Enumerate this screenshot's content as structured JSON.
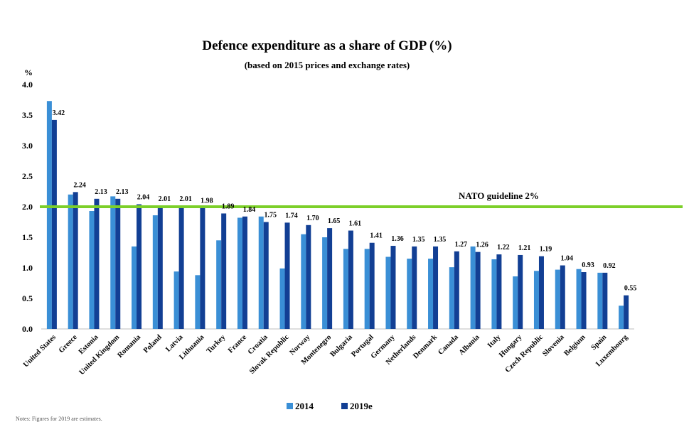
{
  "chart_data": {
    "type": "bar",
    "title": "Defence expenditure as a share of GDP (%)",
    "subtitle": "(based on 2015 prices and exchange rates)",
    "ylabel": "%",
    "xlabel": "",
    "ylim": [
      0,
      4.0
    ],
    "yticks": [
      "0.0",
      "0.5",
      "1.0",
      "1.5",
      "2.0",
      "2.5",
      "3.0",
      "3.5",
      "4.0"
    ],
    "categories": [
      "United States",
      "Greece",
      "Estonia",
      "United Kingdom",
      "Romania",
      "Poland",
      "Latvia",
      "Lithuania",
      "Turkey",
      "France",
      "Croatia",
      "Slovak Republic",
      "Norway",
      "Montenegro",
      "Bulgaria",
      "Portugal",
      "Germany",
      "Netherlands",
      "Denmark",
      "Canada",
      "Albania",
      "Italy",
      "Hungary",
      "Czech Republic",
      "Slovenia",
      "Belgium",
      "Spain",
      "Luxembourg"
    ],
    "series": [
      {
        "name": "2014",
        "color": "#3a8fd6",
        "values": [
          3.73,
          2.2,
          1.93,
          2.17,
          1.35,
          1.86,
          0.94,
          0.88,
          1.45,
          1.82,
          1.84,
          0.99,
          1.55,
          1.5,
          1.31,
          1.31,
          1.18,
          1.15,
          1.15,
          1.01,
          1.35,
          1.14,
          0.86,
          0.95,
          0.97,
          0.98,
          0.92,
          0.38
        ]
      },
      {
        "name": "2019e",
        "color": "#123f94",
        "values": [
          3.42,
          2.24,
          2.13,
          2.13,
          2.04,
          2.01,
          2.01,
          1.98,
          1.89,
          1.84,
          1.75,
          1.74,
          1.7,
          1.65,
          1.61,
          1.41,
          1.36,
          1.35,
          1.35,
          1.27,
          1.26,
          1.22,
          1.21,
          1.19,
          1.04,
          0.93,
          0.92,
          0.55
        ]
      }
    ],
    "data_labels": [
      "3.42",
      "2.24",
      "2.13",
      "2.13",
      "2.04",
      "2.01",
      "2.01",
      "1.98",
      "1.89",
      "1.84",
      "1.75",
      "1.74",
      "1.70",
      "1.65",
      "1.61",
      "1.41",
      "1.36",
      "1.35",
      "1.35",
      "1.27",
      "1.26",
      "1.22",
      "1.21",
      "1.19",
      "1.04",
      "0.93",
      "0.92",
      "0.55"
    ],
    "reference_line": {
      "value": 2.0,
      "label": "NATO guideline 2%",
      "color": "#7ccf2a"
    },
    "legend": {
      "position": "bottom-center",
      "items": [
        "2014",
        "2019e"
      ]
    },
    "grid": false,
    "note": "Notes: Figures for 2019 are estimates."
  }
}
